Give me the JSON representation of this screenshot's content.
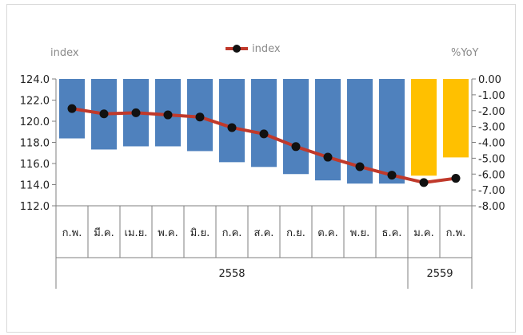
{
  "chart_data": {
    "type": "bar",
    "left_axis_label": "index",
    "right_axis_label": "%YoY",
    "legend": {
      "name": "index",
      "placement": "top-center"
    },
    "left_ylim": [
      112.0,
      124.0
    ],
    "left_ticks": [
      "124.0",
      "122.0",
      "120.0",
      "118.0",
      "116.0",
      "114.0",
      "112.0"
    ],
    "right_ylim": [
      -8.0,
      0.0
    ],
    "right_ticks": [
      "0.00",
      "-1.00",
      "-2.00",
      "-3.00",
      "-4.00",
      "-5.00",
      "-6.00",
      "-7.00",
      "-8.00"
    ],
    "categories": [
      "ก.พ.",
      "มี.ค.",
      "เม.ย.",
      "พ.ค.",
      "มิ.ย.",
      "ก.ค.",
      "ส.ค.",
      "ก.ย.",
      "ต.ค.",
      "พ.ย.",
      "ธ.ค.",
      "ม.ค.",
      "ก.พ."
    ],
    "years": [
      {
        "label": "2558",
        "start": 0,
        "count": 11
      },
      {
        "label": "2559",
        "start": 11,
        "count": 2
      }
    ],
    "bars_yoy": [
      -3.75,
      -4.45,
      -4.25,
      -4.25,
      -4.55,
      -5.25,
      -5.55,
      -6.0,
      -6.4,
      -6.6,
      -6.6,
      -6.1,
      -4.95
    ],
    "bar_colors": [
      "#4f81bd",
      "#4f81bd",
      "#4f81bd",
      "#4f81bd",
      "#4f81bd",
      "#4f81bd",
      "#4f81bd",
      "#4f81bd",
      "#4f81bd",
      "#4f81bd",
      "#4f81bd",
      "#ffc000",
      "#ffc000"
    ],
    "line_index": [
      121.2,
      120.7,
      120.8,
      120.6,
      120.4,
      119.4,
      118.8,
      117.6,
      116.6,
      115.7,
      114.9,
      114.2,
      114.6
    ],
    "line_color": "#c0392b",
    "marker_color": "#111111"
  }
}
